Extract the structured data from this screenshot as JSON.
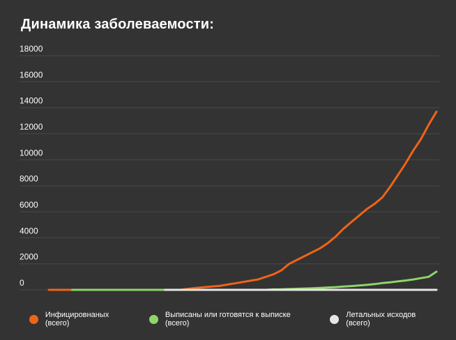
{
  "colors": {
    "background": "#333333",
    "grid": "#4a4a4a",
    "infected": "#ee6419",
    "recovered": "#8fd46a",
    "deaths": "#e6e6e6"
  },
  "chart_data": {
    "type": "line",
    "title": "Динамика заболеваемости:",
    "xlabel": "",
    "ylabel": "",
    "ylim": [
      0,
      18000
    ],
    "y_ticks": [
      "0",
      "2000",
      "4000",
      "6000",
      "8000",
      "10000",
      "12000",
      "14000",
      "16000",
      "18000"
    ],
    "y_tick_values": [
      0,
      2000,
      4000,
      6000,
      8000,
      10000,
      12000,
      14000,
      16000,
      18000
    ],
    "grid": true,
    "legend_position": "bottom",
    "x": [
      0,
      1,
      2,
      3,
      4,
      5,
      6,
      7,
      8,
      9,
      10,
      11,
      12,
      13,
      14,
      15,
      16,
      17,
      18,
      19,
      20,
      21,
      22,
      23,
      24,
      25,
      26,
      27,
      28,
      29,
      30,
      31,
      32,
      33,
      34,
      35,
      36,
      37,
      38,
      39,
      40,
      41,
      42,
      43,
      44,
      45,
      46,
      47,
      48,
      49,
      50
    ],
    "series": [
      {
        "key": "infected",
        "name": "Инфицировнаных (всего)",
        "x": [
          0,
          1,
          2,
          3,
          4,
          5,
          6,
          7,
          8,
          9,
          10,
          11,
          12,
          13,
          14,
          15,
          16,
          17,
          18,
          19,
          20,
          21,
          22,
          23,
          24,
          25,
          26,
          27,
          28,
          29,
          30,
          31,
          32,
          33,
          34,
          35,
          36,
          37,
          38,
          39,
          40,
          41,
          42,
          43,
          44,
          45,
          46,
          47,
          48,
          49,
          50
        ],
        "values": [
          0,
          0,
          0,
          0,
          0,
          0,
          0,
          0,
          0,
          0,
          0,
          0,
          0,
          0,
          0,
          0,
          0,
          0,
          80,
          150,
          200,
          250,
          300,
          400,
          500,
          600,
          700,
          800,
          1000,
          1200,
          1500,
          2000,
          2300,
          2600,
          2900,
          3200,
          3600,
          4100,
          4700,
          5200,
          5700,
          6200,
          6600,
          7100,
          7900,
          8800,
          9700,
          10700,
          11600,
          12700,
          13700
        ]
      },
      {
        "key": "recovered",
        "name": "Выписаны или готовятся к выписке (всего)",
        "x": [
          3,
          4,
          5,
          6,
          7,
          8,
          9,
          10,
          11,
          12,
          13,
          14,
          15,
          16,
          17,
          18,
          19,
          20,
          21,
          22,
          23,
          24,
          25,
          26,
          27,
          28,
          29,
          30,
          31,
          32,
          33,
          34,
          35,
          36,
          37,
          38,
          39,
          40,
          41,
          42,
          43,
          44,
          45,
          46,
          47,
          48,
          49,
          50
        ],
        "values": [
          0,
          0,
          0,
          0,
          0,
          0,
          0,
          0,
          0,
          0,
          0,
          0,
          0,
          0,
          0,
          0,
          0,
          0,
          0,
          0,
          0,
          0,
          0,
          0,
          0,
          0,
          30,
          40,
          60,
          80,
          100,
          120,
          150,
          180,
          210,
          250,
          290,
          330,
          380,
          440,
          520,
          580,
          650,
          720,
          800,
          900,
          1000,
          1400
        ]
      },
      {
        "key": "deaths",
        "name": "Летальных исходов (всего)",
        "x": [
          15,
          16,
          17,
          18,
          19,
          20,
          21,
          22,
          23,
          24,
          25,
          26,
          27,
          28,
          29,
          30,
          31,
          32,
          33,
          34,
          35,
          36,
          37,
          38,
          39,
          40,
          41,
          42,
          43,
          44,
          45,
          46,
          47,
          48,
          49,
          50
        ],
        "values": [
          0,
          0,
          0,
          0,
          0,
          0,
          0,
          0,
          0,
          0,
          0,
          0,
          0,
          0,
          0,
          0,
          0,
          0,
          0,
          0,
          0,
          0,
          0,
          0,
          0,
          0,
          0,
          0,
          0,
          0,
          0,
          0,
          0,
          0,
          0,
          0
        ]
      }
    ]
  }
}
